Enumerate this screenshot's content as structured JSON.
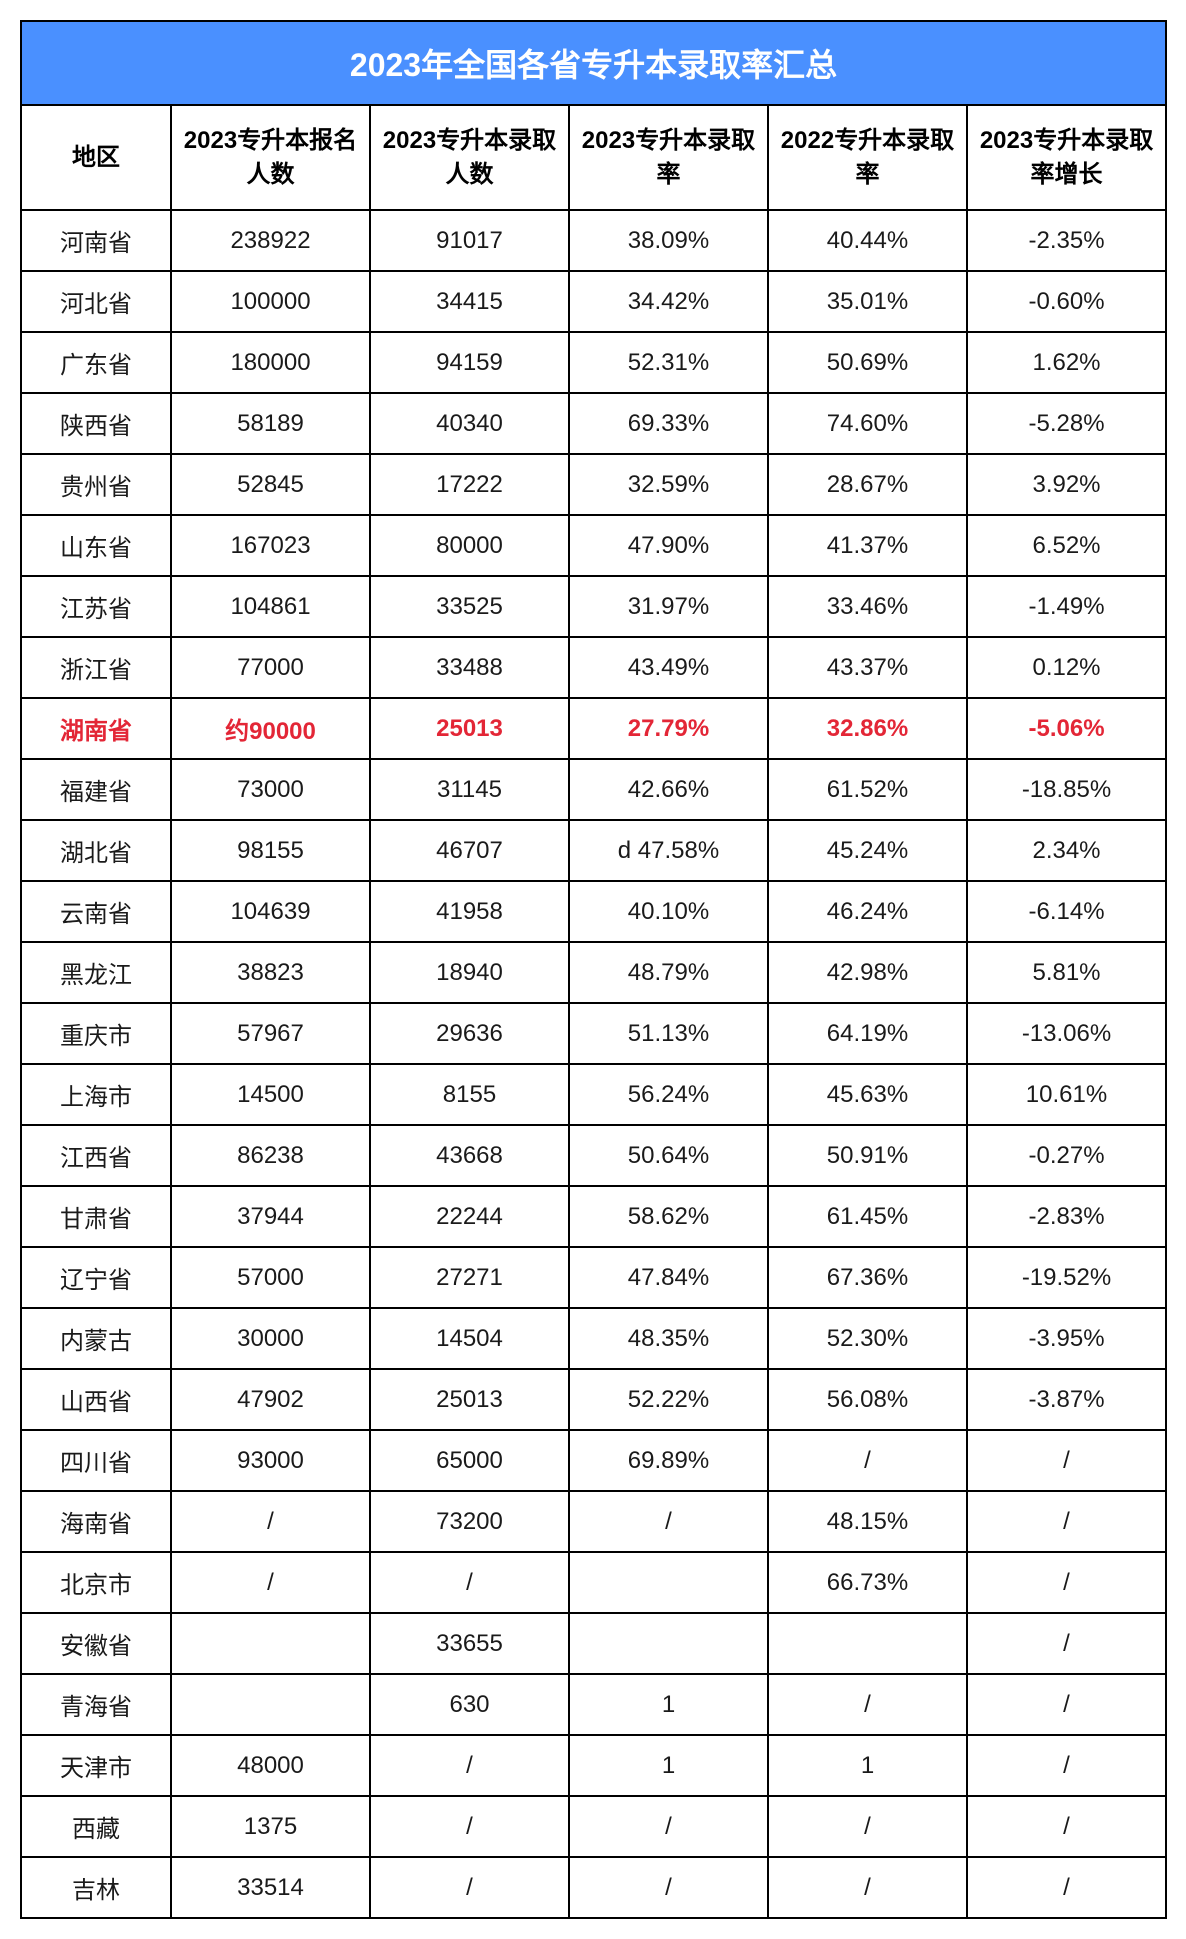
{
  "table": {
    "title": "2023年全国各省专升本录取率汇总",
    "title_bg": "#4a90ff",
    "title_color": "#ffffff",
    "border_color": "#000000",
    "highlight_color": "#e32636",
    "columns": [
      "地区",
      "2023专升本报名人数",
      "2023专升本录取人数",
      "2023专升本录取率",
      "2022专升本录取率",
      "2023专升本录取率增长"
    ],
    "highlight_row_index": 8,
    "rows": [
      [
        "河南省",
        "238922",
        "91017",
        "38.09%",
        "40.44%",
        "-2.35%"
      ],
      [
        "河北省",
        "100000",
        "34415",
        "34.42%",
        "35.01%",
        "-0.60%"
      ],
      [
        "广东省",
        "180000",
        "94159",
        "52.31%",
        "50.69%",
        "1.62%"
      ],
      [
        "陕西省",
        "58189",
        "40340",
        "69.33%",
        "74.60%",
        "-5.28%"
      ],
      [
        "贵州省",
        "52845",
        "17222",
        "32.59%",
        "28.67%",
        "3.92%"
      ],
      [
        "山东省",
        "167023",
        "80000",
        "47.90%",
        "41.37%",
        "6.52%"
      ],
      [
        "江苏省",
        "104861",
        "33525",
        "31.97%",
        "33.46%",
        "-1.49%"
      ],
      [
        "浙江省",
        "77000",
        "33488",
        "43.49%",
        "43.37%",
        "0.12%"
      ],
      [
        "湖南省",
        "约90000",
        "25013",
        "27.79%",
        "32.86%",
        "-5.06%"
      ],
      [
        "福建省",
        "73000",
        "31145",
        "42.66%",
        "61.52%",
        "-18.85%"
      ],
      [
        "湖北省",
        "98155",
        "46707",
        "d 47.58%",
        "45.24%",
        "2.34%"
      ],
      [
        "云南省",
        "104639",
        "41958",
        "40.10%",
        "46.24%",
        "-6.14%"
      ],
      [
        "黑龙江",
        "38823",
        "18940",
        "48.79%",
        "42.98%",
        "5.81%"
      ],
      [
        "重庆市",
        "57967",
        "29636",
        "51.13%",
        "64.19%",
        "-13.06%"
      ],
      [
        "上海市",
        "14500",
        "8155",
        "56.24%",
        "45.63%",
        "10.61%"
      ],
      [
        "江西省",
        "86238",
        "43668",
        "50.64%",
        "50.91%",
        "-0.27%"
      ],
      [
        "甘肃省",
        "37944",
        "22244",
        "58.62%",
        "61.45%",
        "-2.83%"
      ],
      [
        "辽宁省",
        "57000",
        "27271",
        "47.84%",
        "67.36%",
        "-19.52%"
      ],
      [
        "内蒙古",
        "30000",
        "14504",
        "48.35%",
        "52.30%",
        "-3.95%"
      ],
      [
        "山西省",
        "47902",
        "25013",
        "52.22%",
        "56.08%",
        "-3.87%"
      ],
      [
        "四川省",
        "93000",
        "65000",
        "69.89%",
        "/",
        "/"
      ],
      [
        "海南省",
        "/",
        "73200",
        "/",
        "48.15%",
        "/"
      ],
      [
        "北京市",
        "/",
        "/",
        "",
        "66.73%",
        "/"
      ],
      [
        "安徽省",
        "",
        "33655",
        "",
        "",
        "/"
      ],
      [
        "青海省",
        "",
        "630",
        "1",
        "/",
        "/"
      ],
      [
        "天津市",
        "48000",
        "/",
        "1",
        "1",
        "/"
      ],
      [
        "西藏",
        "1375",
        "/",
        "/",
        "/",
        "/"
      ],
      [
        "吉林",
        "33514",
        "/",
        "/",
        "/",
        "/"
      ]
    ]
  }
}
